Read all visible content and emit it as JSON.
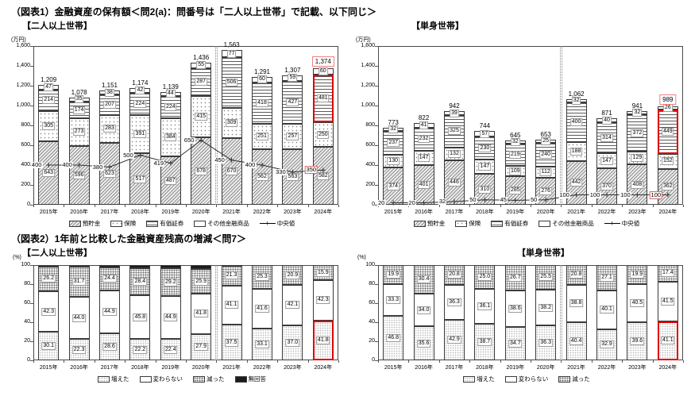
{
  "figures": [
    {
      "title": "（図表1）金融資産の保有額＜問2(a)：問番号は「二人以上世帯」で記載、以下同じ＞"
    },
    {
      "title": "（図表2）1年前と比較した金融資産残高の増減＜問7＞"
    }
  ],
  "colors": {
    "highlight_strong": "#dd0000",
    "highlight_soft": "#f08080"
  },
  "chart_data": [
    {
      "id": "holdings-two-person",
      "type": "bar",
      "stacked": true,
      "title": "【二人以上世帯】",
      "unit": "(万円)",
      "ylim": [
        0,
        1600
      ],
      "ytick_step": 200,
      "categories": [
        "2015年",
        "2016年",
        "2017年",
        "2018年",
        "2019年",
        "2020年",
        "2021年",
        "2022年",
        "2023年",
        "2024年"
      ],
      "series": [
        {
          "name": "預貯金",
          "pattern": "hatch",
          "values": [
            643,
            596,
            623,
            517,
            487,
            678,
            670,
            562,
            563,
            582
          ]
        },
        {
          "name": "保険",
          "pattern": "dots-sparse",
          "values": [
            305,
            273,
            283,
            391,
            384,
            415,
            309,
            251,
            257,
            250
          ]
        },
        {
          "name": "有価証券",
          "pattern": "hlines",
          "values": [
            214,
            174,
            207,
            224,
            224,
            287,
            506,
            418,
            427,
            481
          ]
        },
        {
          "name": "その他金融商品",
          "pattern": "plain",
          "values": [
            47,
            35,
            38,
            42,
            44,
            55,
            77,
            60,
            59,
            60
          ]
        }
      ],
      "totals": [
        1209,
        1078,
        1151,
        1174,
        1139,
        1436,
        1563,
        1291,
        1307,
        1374
      ],
      "median": {
        "name": "中央値",
        "values": [
          400,
          400,
          380,
          500,
          419,
          650,
          450,
          400,
          330,
          350
        ]
      },
      "separator_after_index": 5,
      "highlights": {
        "column": 9,
        "total": true,
        "series": "有価証券",
        "median": true
      }
    },
    {
      "id": "holdings-single",
      "type": "bar",
      "stacked": true,
      "title": "【単身世帯】",
      "unit": "(万円)",
      "ylim": [
        0,
        1600
      ],
      "ytick_step": 200,
      "categories": [
        "2015年",
        "2016年",
        "2017年",
        "2018年",
        "2019年",
        "2020年",
        "2021年",
        "2022年",
        "2023年",
        "2024年"
      ],
      "series": [
        {
          "name": "預貯金",
          "pattern": "hatch",
          "values": [
            374,
            401,
            446,
            310,
            285,
            276,
            442,
            370,
            408,
            362
          ]
        },
        {
          "name": "保険",
          "pattern": "dots-sparse",
          "values": [
            130,
            147,
            132,
            147,
            109,
            112,
            188,
            147,
            129,
            152
          ]
        },
        {
          "name": "有価証券",
          "pattern": "hlines",
          "values": [
            237,
            232,
            325,
            230,
            219,
            240,
            400,
            314,
            372,
            449
          ]
        },
        {
          "name": "その他金融商品",
          "pattern": "plain",
          "values": [
            32,
            41,
            39,
            57,
            32,
            25,
            32,
            40,
            32,
            26
          ]
        }
      ],
      "totals": [
        773,
        822,
        942,
        744,
        645,
        653,
        1062,
        871,
        941,
        989
      ],
      "median": {
        "name": "中央値",
        "values": [
          20,
          20,
          32,
          50,
          45,
          50,
          100,
          100,
          100,
          100
        ]
      },
      "separator_after_index": 5,
      "highlights": {
        "column": 9,
        "total": true,
        "series": "有価証券",
        "median": true
      }
    },
    {
      "id": "change-two-person",
      "type": "bar",
      "stacked": true,
      "title": "【二人以上世帯】",
      "unit": "(%)",
      "ylim": [
        0,
        100
      ],
      "ytick_step": 20,
      "label_decimals": 1,
      "categories": [
        "2015年",
        "2016年",
        "2017年",
        "2018年",
        "2019年",
        "2020年",
        "2021年",
        "2022年",
        "2023年",
        "2024年"
      ],
      "series": [
        {
          "name": "増えた",
          "pattern": "dots-light",
          "values": [
            30.1,
            22.3,
            28.6,
            22.2,
            22.4,
            27.9,
            37.5,
            33.1,
            37.0,
            41.8
          ]
        },
        {
          "name": "変わらない",
          "pattern": "plain",
          "values": [
            42.3,
            44.0,
            44.9,
            45.8,
            44.9,
            41.8,
            41.1,
            41.6,
            42.1,
            42.3
          ]
        },
        {
          "name": "減った",
          "pattern": "dots-dense",
          "values": [
            26.2,
            31.7,
            24.4,
            28.4,
            29.2,
            25.9,
            21.3,
            25.3,
            20.9,
            15.9
          ]
        },
        {
          "name": "無回答",
          "pattern": "solid-dark",
          "labels": false,
          "values": [
            1.4,
            2.0,
            2.1,
            3.6,
            3.5,
            4.4,
            0.1,
            0,
            0,
            0
          ]
        }
      ],
      "separator_after_index": 5,
      "highlights": {
        "column": 9,
        "series": "増えた"
      }
    },
    {
      "id": "change-single",
      "type": "bar",
      "stacked": true,
      "title": "【単身世帯】",
      "unit": "(%)",
      "ylim": [
        0,
        100
      ],
      "ytick_step": 20,
      "label_decimals": 1,
      "categories": [
        "2015年",
        "2016年",
        "2017年",
        "2018年",
        "2019年",
        "2020年",
        "2021年",
        "2022年",
        "2023年",
        "2024年"
      ],
      "series": [
        {
          "name": "増えた",
          "pattern": "dots-light",
          "values": [
            46.8,
            35.6,
            42.9,
            38.7,
            34.7,
            36.3,
            40.4,
            32.9,
            39.6,
            41.1
          ]
        },
        {
          "name": "変わらない",
          "pattern": "plain",
          "values": [
            33.3,
            34.0,
            36.3,
            36.1,
            38.6,
            38.2,
            38.8,
            40.1,
            40.5,
            41.5
          ]
        },
        {
          "name": "減った",
          "pattern": "dots-dense",
          "values": [
            19.9,
            30.4,
            20.8,
            25.0,
            26.7,
            25.5,
            20.8,
            27.1,
            19.9,
            17.4
          ]
        }
      ],
      "separator_after_index": 5,
      "highlights": {
        "column": 9,
        "series": "増えた"
      }
    }
  ]
}
